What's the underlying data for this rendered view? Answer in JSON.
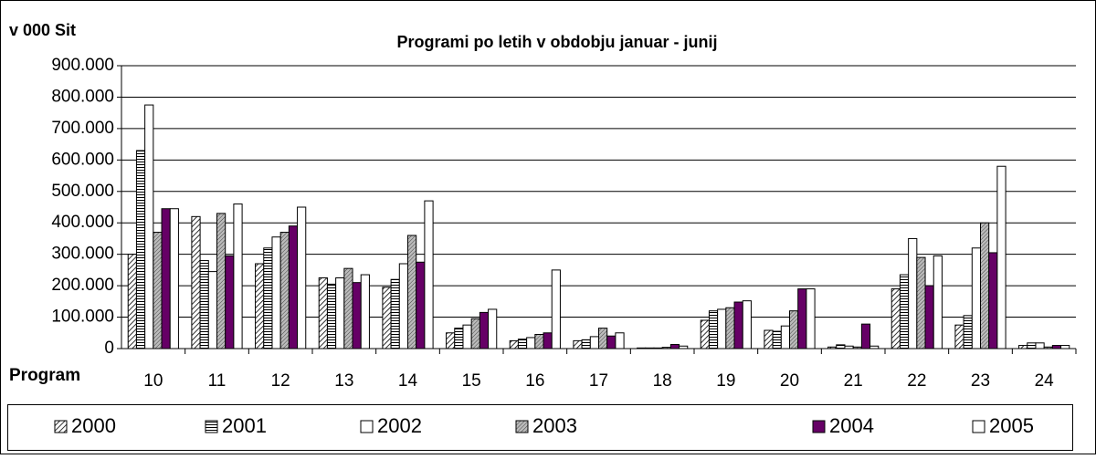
{
  "chart_data": {
    "type": "bar",
    "title": "Programi po letih v obdobju januar - junij",
    "y_label": "v 000 Sit",
    "x_label": "Program",
    "categories": [
      "10",
      "11",
      "12",
      "13",
      "14",
      "15",
      "16",
      "17",
      "18",
      "19",
      "20",
      "21",
      "22",
      "23",
      "24"
    ],
    "series": [
      {
        "name": "2000",
        "color": "#000000",
        "pattern": "diagonal",
        "values": [
          300000,
          420000,
          270000,
          225000,
          195000,
          50000,
          25000,
          25000,
          2000,
          90000,
          58000,
          5000,
          190000,
          75000,
          10000
        ]
      },
      {
        "name": "2001",
        "color": "#000000",
        "pattern": "horizontal",
        "values": [
          630000,
          280000,
          320000,
          205000,
          220000,
          65000,
          30000,
          28000,
          2000,
          120000,
          55000,
          12000,
          235000,
          105000,
          18000
        ]
      },
      {
        "name": "2002",
        "color": "#ffffff",
        "pattern": "none",
        "values": [
          775000,
          245000,
          355000,
          225000,
          270000,
          75000,
          35000,
          38000,
          2000,
          125000,
          72000,
          8000,
          350000,
          320000,
          18000
        ]
      },
      {
        "name": "2003",
        "color": "#000000",
        "pattern": "dotted",
        "values": [
          370000,
          430000,
          370000,
          255000,
          360000,
          95000,
          45000,
          65000,
          4000,
          130000,
          120000,
          5000,
          290000,
          400000,
          5000
        ]
      },
      {
        "name": "2004",
        "color": "#660066",
        "pattern": "none",
        "values": [
          445000,
          295000,
          390000,
          210000,
          275000,
          115000,
          50000,
          40000,
          13000,
          148000,
          190000,
          78000,
          200000,
          305000,
          10000
        ]
      },
      {
        "name": "2005",
        "color": "#ffffff",
        "pattern": "none",
        "values": [
          445000,
          460000,
          450000,
          235000,
          470000,
          125000,
          250000,
          50000,
          8000,
          152000,
          190000,
          8000,
          295000,
          580000,
          10000
        ]
      }
    ],
    "ylim": [
      0,
      900000
    ],
    "yticks": [
      0,
      {
        "value": 100000,
        "label": "100.000"
      },
      {
        "value": 200000,
        "label": "200.000"
      },
      {
        "value": 300000,
        "label": "300.000"
      },
      {
        "value": 400000,
        "label": "400.000"
      },
      {
        "value": 500000,
        "label": "500.000"
      },
      {
        "value": 600000,
        "label": "600.000"
      },
      {
        "value": 700000,
        "label": "700.000"
      },
      {
        "value": 800000,
        "label": "800.000"
      },
      {
        "value": 900000,
        "label": "900.000"
      }
    ],
    "grid": true,
    "legend": "bottom"
  }
}
